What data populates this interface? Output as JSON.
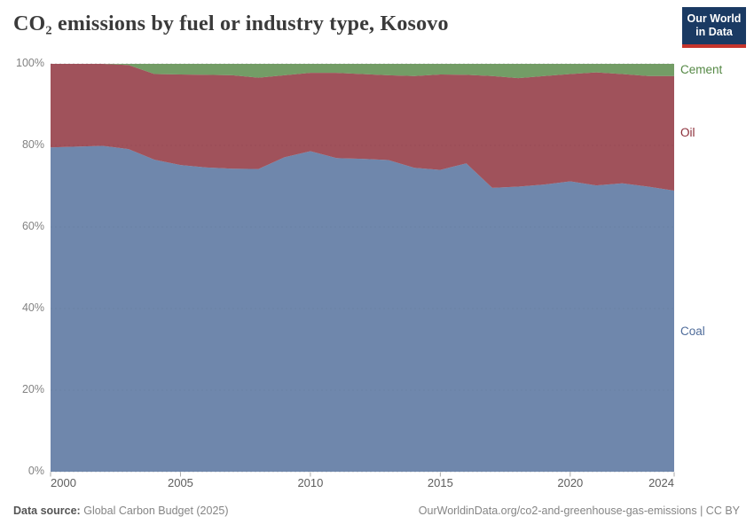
{
  "header": {
    "title": "CO₂ emissions by fuel or industry type, Kosovo",
    "logo": {
      "line1": "Our World",
      "line2": "in Data"
    }
  },
  "chart_data": {
    "type": "area",
    "stacking": "percent",
    "title": "CO₂ emissions by fuel or industry type, Kosovo",
    "x": [
      2000,
      2001,
      2002,
      2003,
      2004,
      2005,
      2006,
      2007,
      2008,
      2009,
      2010,
      2011,
      2012,
      2013,
      2014,
      2015,
      2016,
      2017,
      2018,
      2019,
      2020,
      2021,
      2022,
      2023,
      2024
    ],
    "series": [
      {
        "name": "Coal",
        "color": "#4f6c9a",
        "values": [
          79.5,
          79.7,
          79.9,
          79.1,
          76.5,
          75.2,
          74.6,
          74.3,
          74.2,
          77.1,
          78.6,
          76.9,
          76.7,
          76.4,
          74.5,
          74.0,
          75.6,
          69.6,
          69.9,
          70.4,
          71.2,
          70.2,
          70.7,
          69.9,
          68.9
        ]
      },
      {
        "name": "Oil",
        "color": "#8b2c37",
        "values": [
          20.5,
          20.3,
          20.1,
          20.6,
          21.0,
          22.2,
          22.7,
          22.9,
          22.4,
          20.1,
          19.2,
          20.9,
          20.8,
          20.8,
          22.5,
          23.4,
          21.7,
          27.4,
          26.6,
          26.6,
          26.3,
          27.7,
          26.8,
          27.1,
          28.1
        ]
      },
      {
        "name": "Cement",
        "color": "#548844",
        "values": [
          0,
          0,
          0,
          0.3,
          2.5,
          2.6,
          2.7,
          2.8,
          3.4,
          2.8,
          2.2,
          2.2,
          2.5,
          2.8,
          3.0,
          2.6,
          2.7,
          3.0,
          3.5,
          3.0,
          2.5,
          2.1,
          2.5,
          3.0,
          3.0
        ]
      }
    ],
    "ylim": [
      0,
      100
    ],
    "ytick_labels": [
      "0%",
      "20%",
      "40%",
      "60%",
      "80%",
      "100%"
    ],
    "xtick_labels": [
      "2000",
      "2005",
      "2010",
      "2015",
      "2020",
      "2024"
    ],
    "xtick_years": [
      2000,
      2005,
      2010,
      2015,
      2020,
      2024
    ],
    "grid": "horizontal-dashed",
    "legend_position": "right",
    "fill_opacity": 0.82,
    "grid_color": "#d5d5d5",
    "tick_color": "#aaaaaa"
  },
  "footer": {
    "datasource_label": "Data source:",
    "datasource_value": "Global Carbon Budget (2025)",
    "credit": "OurWorldinData.org/co2-and-greenhouse-gas-emissions | CC BY"
  }
}
